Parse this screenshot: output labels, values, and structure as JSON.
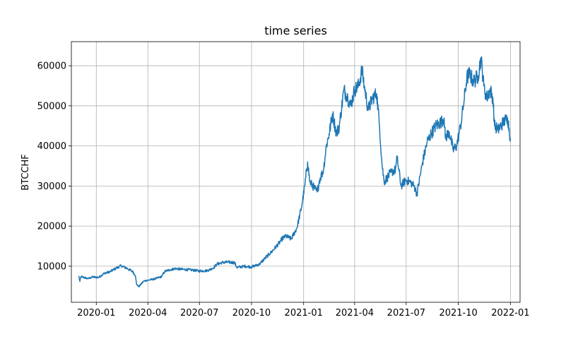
{
  "chart_data": {
    "type": "line",
    "title": "time series",
    "xlabel": "",
    "ylabel": "BTCCHF",
    "xlim": [
      "2019-11-18",
      "2022-01-18"
    ],
    "ylim": [
      1000,
      66000
    ],
    "grid": true,
    "colors": {
      "line": "#1f77b4",
      "grid": "#b0b0b0",
      "axis": "#000000"
    },
    "x_ticks": [
      "2020-01-01",
      "2020-04-01",
      "2020-07-01",
      "2020-10-01",
      "2021-01-01",
      "2021-04-01",
      "2021-07-01",
      "2021-10-01",
      "2022-01-01"
    ],
    "x_tick_labels": [
      "2020-01",
      "2020-04",
      "2020-07",
      "2020-10",
      "2021-01",
      "2021-04",
      "2021-07",
      "2021-10",
      "2022-01"
    ],
    "y_ticks": [
      10000,
      20000,
      30000,
      40000,
      50000,
      60000
    ],
    "y_tick_labels": [
      "10000",
      "20000",
      "30000",
      "40000",
      "50000",
      "60000"
    ],
    "series": [
      {
        "x": [
          "2019-12-01",
          "2019-12-03",
          "2019-12-05",
          "2019-12-10",
          "2019-12-15",
          "2019-12-18",
          "2019-12-25",
          "2020-01-05",
          "2020-01-15",
          "2020-01-25",
          "2020-02-05",
          "2020-02-14",
          "2020-02-25",
          "2020-03-05",
          "2020-03-10",
          "2020-03-12",
          "2020-03-16",
          "2020-03-25",
          "2020-04-05",
          "2020-04-15",
          "2020-04-25",
          "2020-05-01",
          "2020-05-10",
          "2020-05-20",
          "2020-06-01",
          "2020-06-15",
          "2020-07-01",
          "2020-07-15",
          "2020-07-25",
          "2020-08-01",
          "2020-08-10",
          "2020-08-20",
          "2020-09-01",
          "2020-09-05",
          "2020-09-20",
          "2020-10-01",
          "2020-10-15",
          "2020-10-25",
          "2020-11-05",
          "2020-11-20",
          "2020-11-25",
          "2020-12-01",
          "2020-12-10",
          "2020-12-20",
          "2020-12-28",
          "2021-01-03",
          "2021-01-08",
          "2021-01-12",
          "2021-01-20",
          "2021-01-25",
          "2021-01-29",
          "2021-02-05",
          "2021-02-10",
          "2021-02-15",
          "2021-02-21",
          "2021-02-28",
          "2021-03-05",
          "2021-03-13",
          "2021-03-20",
          "2021-03-25",
          "2021-04-01",
          "2021-04-08",
          "2021-04-14",
          "2021-04-18",
          "2021-04-25",
          "2021-05-03",
          "2021-05-10",
          "2021-05-15",
          "2021-05-19",
          "2021-05-23",
          "2021-05-28",
          "2021-06-05",
          "2021-06-12",
          "2021-06-15",
          "2021-06-22",
          "2021-06-30",
          "2021-07-08",
          "2021-07-15",
          "2021-07-20",
          "2021-07-30",
          "2021-08-07",
          "2021-08-14",
          "2021-08-22",
          "2021-09-01",
          "2021-09-06",
          "2021-09-08",
          "2021-09-15",
          "2021-09-22",
          "2021-09-28",
          "2021-10-05",
          "2021-10-10",
          "2021-10-16",
          "2021-10-21",
          "2021-10-28",
          "2021-11-05",
          "2021-11-10",
          "2021-11-15",
          "2021-11-20",
          "2021-11-26",
          "2021-12-01",
          "2021-12-04",
          "2021-12-10",
          "2021-12-20",
          "2021-12-27",
          "2022-01-01"
        ],
        "values": [
          7600,
          6200,
          7400,
          7200,
          7000,
          6900,
          7300,
          7200,
          8200,
          8600,
          9500,
          10100,
          9400,
          8700,
          7700,
          5500,
          4900,
          6300,
          6600,
          6900,
          7400,
          8700,
          9100,
          9400,
          9200,
          9100,
          8800,
          8900,
          9500,
          10500,
          10900,
          11000,
          10900,
          9700,
          10000,
          9800,
          10500,
          12000,
          13500,
          16000,
          17000,
          17500,
          16800,
          19500,
          24500,
          30000,
          36000,
          31000,
          29500,
          28500,
          31500,
          34000,
          40000,
          43000,
          48000,
          43000,
          45000,
          54000,
          52000,
          50000,
          54000,
          55000,
          59000,
          55000,
          49000,
          52000,
          53000,
          45000,
          36000,
          31000,
          32000,
          33500,
          34000,
          37000,
          30000,
          31500,
          31000,
          30000,
          28000,
          36000,
          41000,
          43000,
          45000,
          46000,
          47000,
          42000,
          43500,
          39000,
          40000,
          45000,
          50000,
          57000,
          58000,
          56000,
          57500,
          62000,
          55000,
          52000,
          54000,
          52000,
          45000,
          44000,
          46000,
          47000,
          42000
        ]
      }
    ]
  }
}
